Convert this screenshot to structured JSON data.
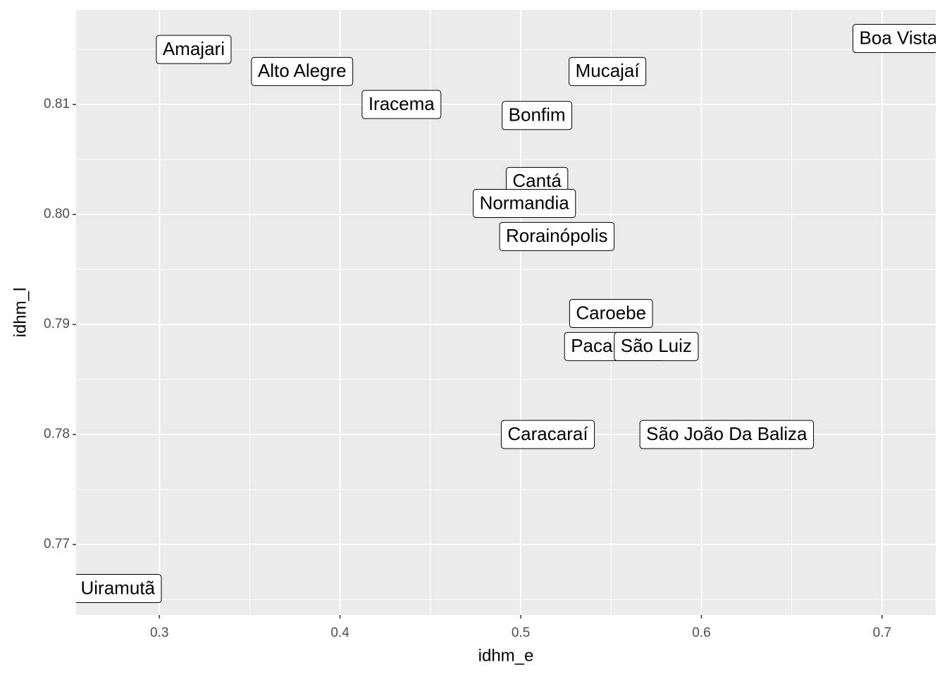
{
  "chart_data": {
    "type": "scatter",
    "x_label": "idhm_e",
    "y_label": "idhm_l",
    "labels": [
      "Amajari",
      "Alto Alegre",
      "Iracema",
      "Bonfim",
      "Mucajaí",
      "Boa Vista",
      "Cantá",
      "Normandia",
      "Rorainópolis",
      "Caroebe",
      "Pacaraima",
      "São Luiz",
      "Caracaraí",
      "São João Da Baliza",
      "Uiramutã"
    ],
    "x": [
      0.319,
      0.379,
      0.434,
      0.509,
      0.548,
      0.709,
      0.509,
      0.502,
      0.52,
      0.55,
      0.552,
      0.575,
      0.515,
      0.614,
      0.277
    ],
    "y": [
      0.815,
      0.813,
      0.81,
      0.809,
      0.813,
      0.816,
      0.803,
      0.801,
      0.798,
      0.791,
      0.788,
      0.788,
      0.78,
      0.78,
      0.766
    ],
    "xlim": [
      0.2539,
      0.7297
    ],
    "ylim": [
      0.7636,
      0.8186
    ],
    "xticks": [
      0.3,
      0.4,
      0.5,
      0.6,
      0.7
    ],
    "yticks": [
      0.77,
      0.78,
      0.79,
      {
        "value": 0.8,
        "label": "0.80"
      },
      0.81
    ],
    "grid": true,
    "panel_color": "#ebebeb",
    "label_fill": "#ffffff"
  }
}
